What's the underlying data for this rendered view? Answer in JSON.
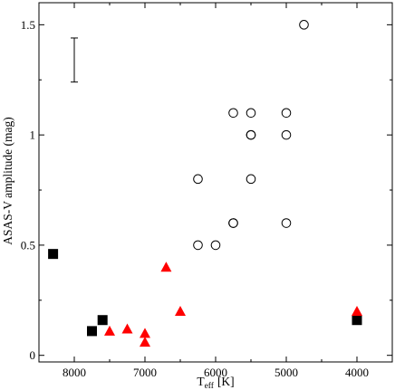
{
  "chart_data": {
    "type": "scatter",
    "xlabel": "T",
    "xlabel_sub": "eff",
    "xlabel_unit": "[K]",
    "ylabel": "ASAS-V amplitude (mag)",
    "xlim": [
      8500,
      3500
    ],
    "ylim": [
      -0.03,
      1.6
    ],
    "x_ticks": [
      8000,
      7000,
      6000,
      5000,
      4000
    ],
    "x_tick_labels": [
      "8000",
      "7000",
      "6000",
      "5000",
      "4000"
    ],
    "y_ticks": [
      0,
      0.5,
      1,
      1.5
    ],
    "y_tick_labels": [
      "0",
      "0.5",
      "1",
      "1.5"
    ],
    "x_reversed": true,
    "grid": false,
    "error_bar": {
      "x": 8000,
      "y_low": 1.24,
      "y_high": 1.44
    },
    "series": [
      {
        "marker": "open-circle",
        "color": "#000000",
        "points": [
          [
            4750,
            1.5
          ],
          [
            5750,
            1.1
          ],
          [
            5500,
            1.1
          ],
          [
            5000,
            1.1
          ],
          [
            5500,
            1.0
          ],
          [
            5500,
            1.0
          ],
          [
            5000,
            1.0
          ],
          [
            6250,
            0.8
          ],
          [
            5500,
            0.8
          ],
          [
            5750,
            0.6
          ],
          [
            5750,
            0.6
          ],
          [
            5000,
            0.6
          ],
          [
            6250,
            0.5
          ],
          [
            6000,
            0.5
          ]
        ]
      },
      {
        "marker": "filled-square",
        "color": "#000000",
        "points": [
          [
            8300,
            0.46
          ],
          [
            7600,
            0.16
          ],
          [
            7750,
            0.11
          ],
          [
            4000,
            0.16
          ]
        ]
      },
      {
        "marker": "filled-triangle",
        "color": "#ff0000",
        "points": [
          [
            6700,
            0.4
          ],
          [
            6500,
            0.2
          ],
          [
            7250,
            0.12
          ],
          [
            7500,
            0.11
          ],
          [
            7000,
            0.1
          ],
          [
            7000,
            0.06
          ],
          [
            4000,
            0.2
          ]
        ]
      }
    ]
  }
}
